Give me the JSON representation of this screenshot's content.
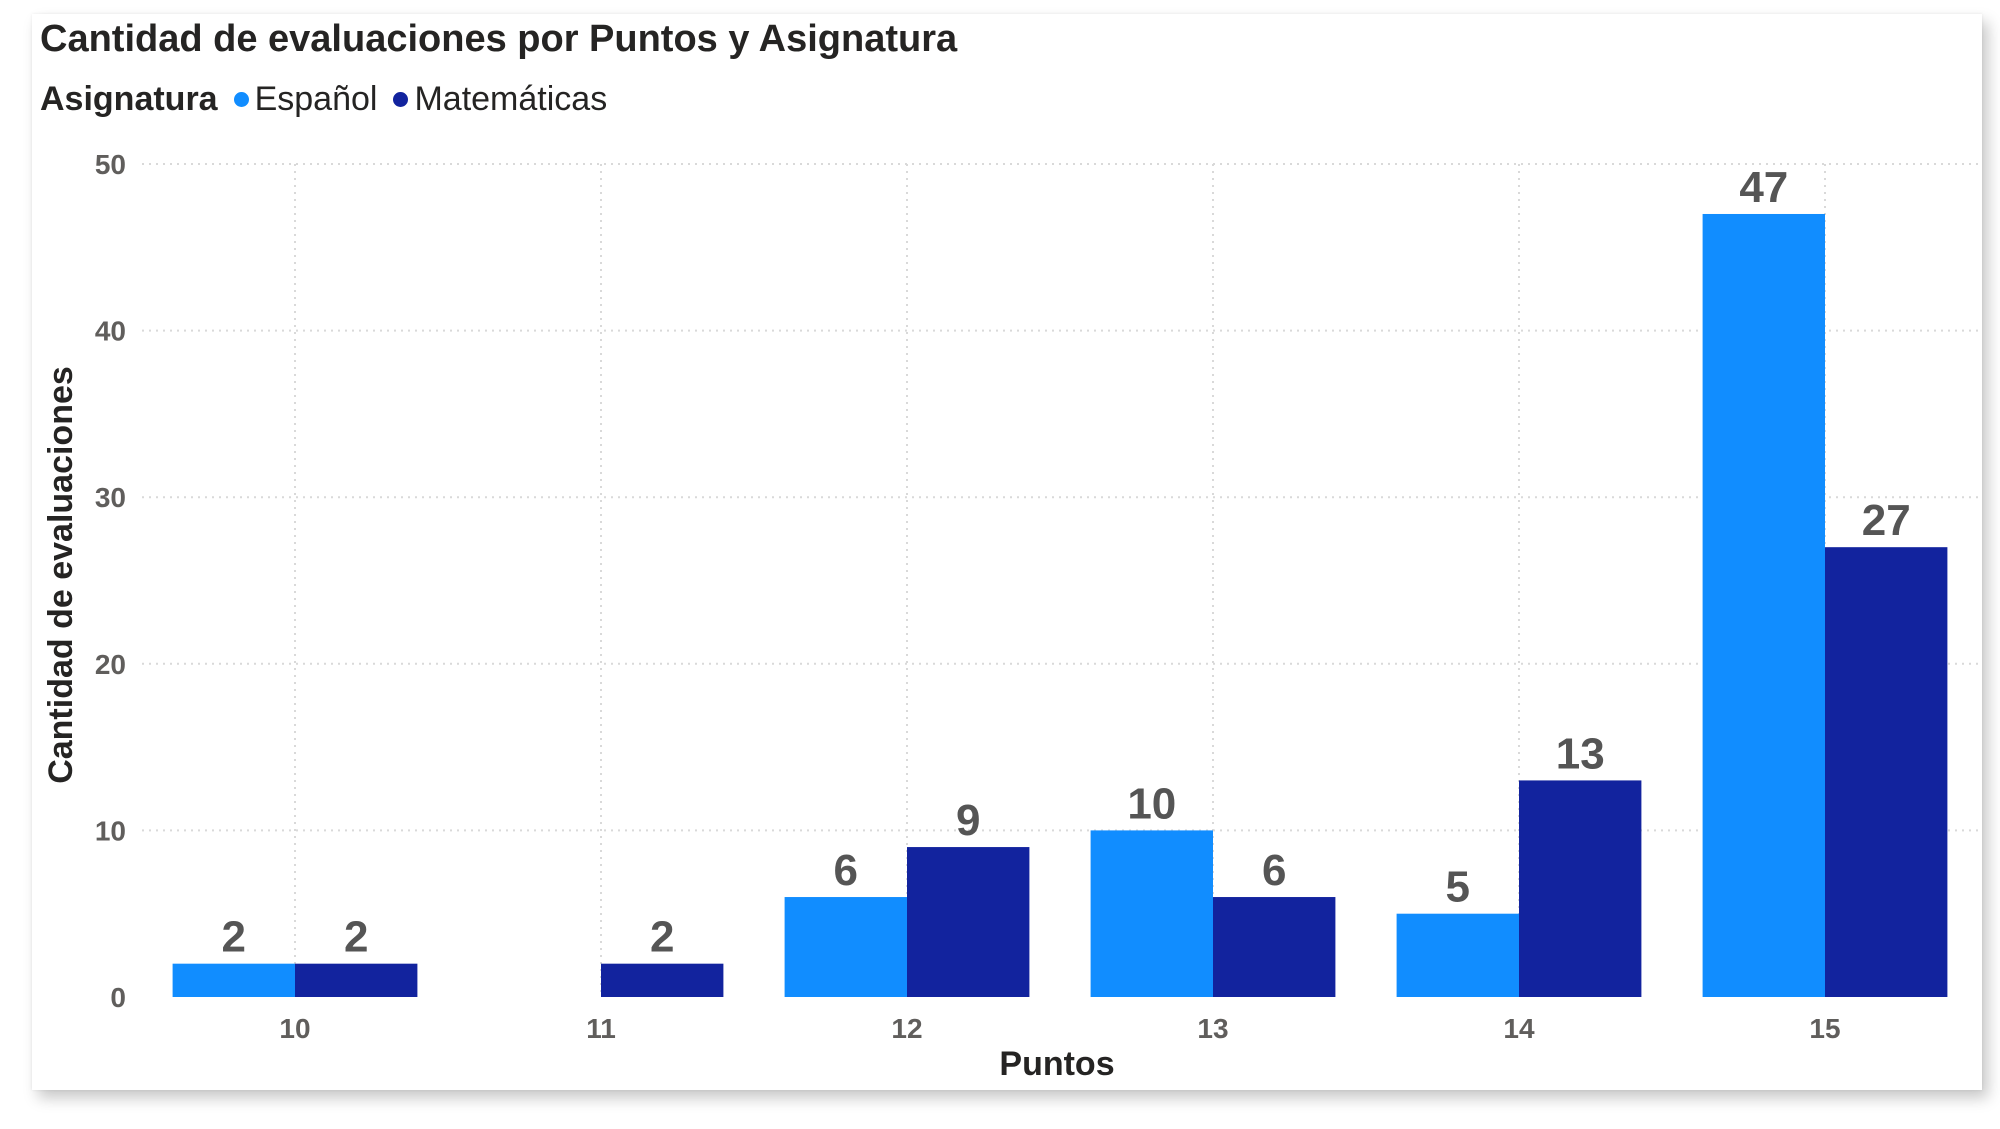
{
  "chart_data": {
    "type": "bar",
    "title": "Cantidad de evaluaciones por Puntos y Asignatura",
    "legend_title": "Asignatura",
    "legend_position": "top-left",
    "xlabel": "Puntos",
    "ylabel": "Cantidad de evaluaciones",
    "categories": [
      "10",
      "11",
      "12",
      "13",
      "14",
      "15"
    ],
    "series": [
      {
        "name": "Español",
        "color": "#118dff",
        "values": [
          2,
          null,
          6,
          10,
          5,
          47
        ]
      },
      {
        "name": "Matemáticas",
        "color": "#12239e",
        "values": [
          2,
          2,
          9,
          6,
          13,
          27
        ]
      }
    ],
    "ylim": [
      0,
      50
    ],
    "yticks": [
      0,
      10,
      20,
      30,
      40,
      50
    ],
    "grid": true,
    "data_labels": true
  }
}
